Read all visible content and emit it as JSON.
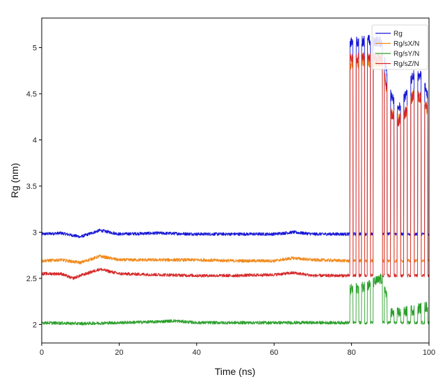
{
  "chart_data": {
    "type": "line",
    "xlabel": "Time (ns)",
    "ylabel": "Rg (nm)",
    "xlim": [
      0,
      100
    ],
    "ylim": [
      1.8,
      5.32
    ],
    "xticks": [
      0,
      20,
      40,
      60,
      80,
      100
    ],
    "yticks": [
      2,
      2.5,
      3,
      3.5,
      4,
      4.5,
      5
    ],
    "xtick_labels": [
      "0",
      "20",
      "40",
      "60",
      "80",
      "100"
    ],
    "ytick_labels": [
      "2",
      "2.5",
      "3",
      "3.5",
      "4",
      "4.5",
      "5"
    ],
    "grid": false,
    "legend_position": "top-right",
    "series": [
      {
        "name": "Rg",
        "color": "#1515d6",
        "base_points": [
          [
            0,
            2.98
          ],
          [
            5,
            2.99
          ],
          [
            10,
            2.95
          ],
          [
            15,
            3.02
          ],
          [
            20,
            2.98
          ],
          [
            30,
            2.99
          ],
          [
            40,
            2.98
          ],
          [
            50,
            2.98
          ],
          [
            60,
            2.98
          ],
          [
            65,
            3.0
          ],
          [
            70,
            2.98
          ],
          [
            79,
            2.98
          ]
        ],
        "segment_points": [
          [
            80,
            5.05
          ],
          [
            84,
            5.08
          ],
          [
            88,
            5.06
          ],
          [
            90,
            4.5
          ],
          [
            92,
            4.32
          ],
          [
            94,
            4.5
          ],
          [
            96,
            4.7
          ],
          [
            98,
            4.7
          ],
          [
            100,
            4.45
          ]
        ],
        "switch_times": [
          79.6,
          80.4,
          81.2,
          81.9,
          82.6,
          83.4,
          84.1,
          84.9,
          85.6,
          88.0,
          88.5,
          89.2,
          90.1,
          91.0,
          91.8,
          92.7,
          93.5,
          94.4,
          95.3,
          96.2,
          97.1,
          98.0,
          98.9,
          99.7
        ]
      },
      {
        "name": "Rg/sX/N",
        "color": "#f08a1c",
        "base_points": [
          [
            0,
            2.69
          ],
          [
            5,
            2.7
          ],
          [
            10,
            2.67
          ],
          [
            15,
            2.74
          ],
          [
            20,
            2.7
          ],
          [
            30,
            2.7
          ],
          [
            40,
            2.7
          ],
          [
            50,
            2.69
          ],
          [
            60,
            2.69
          ],
          [
            65,
            2.72
          ],
          [
            70,
            2.7
          ],
          [
            79,
            2.69
          ]
        ],
        "segment_points": [
          [
            80,
            4.82
          ],
          [
            84,
            4.85
          ],
          [
            88,
            4.83
          ],
          [
            90,
            4.3
          ],
          [
            92,
            4.22
          ],
          [
            94,
            4.3
          ],
          [
            96,
            4.5
          ],
          [
            98,
            4.45
          ],
          [
            100,
            4.3
          ]
        ],
        "switch_times": [
          79.6,
          80.4,
          81.2,
          81.9,
          82.6,
          83.4,
          84.1,
          84.9,
          85.6,
          88.0,
          88.5,
          89.2,
          90.1,
          91.0,
          91.8,
          92.7,
          93.5,
          94.4,
          95.3,
          96.2,
          97.1,
          98.0,
          98.9,
          99.7
        ]
      },
      {
        "name": "Rg/sY/N",
        "color": "#2ca02c",
        "base_points": [
          [
            0,
            2.02
          ],
          [
            10,
            2.01
          ],
          [
            20,
            2.02
          ],
          [
            30,
            2.03
          ],
          [
            34,
            2.04
          ],
          [
            40,
            2.02
          ],
          [
            50,
            2.02
          ],
          [
            60,
            2.02
          ],
          [
            70,
            2.02
          ],
          [
            79,
            2.02
          ]
        ],
        "segment_points": [
          [
            80,
            2.38
          ],
          [
            84,
            2.42
          ],
          [
            88,
            2.5
          ],
          [
            90,
            2.12
          ],
          [
            94,
            2.14
          ],
          [
            98,
            2.18
          ],
          [
            100,
            2.2
          ]
        ],
        "switch_times": [
          79.6,
          80.4,
          81.2,
          81.9,
          82.6,
          83.4,
          84.1,
          84.9,
          85.6,
          88.0,
          88.5,
          89.2,
          90.1,
          91.0,
          91.8,
          92.7,
          93.5,
          94.4,
          95.3,
          96.2,
          97.1,
          98.0,
          98.9,
          99.7
        ]
      },
      {
        "name": "Rg/sZ/N",
        "color": "#d62728",
        "base_points": [
          [
            0,
            2.55
          ],
          [
            5,
            2.55
          ],
          [
            8,
            2.5
          ],
          [
            10,
            2.53
          ],
          [
            15,
            2.6
          ],
          [
            20,
            2.55
          ],
          [
            30,
            2.54
          ],
          [
            40,
            2.53
          ],
          [
            50,
            2.53
          ],
          [
            60,
            2.54
          ],
          [
            65,
            2.56
          ],
          [
            70,
            2.53
          ],
          [
            79,
            2.53
          ]
        ],
        "segment_points": [
          [
            80,
            4.88
          ],
          [
            84,
            4.9
          ],
          [
            88,
            4.88
          ],
          [
            90,
            4.3
          ],
          [
            92,
            4.2
          ],
          [
            94,
            4.3
          ],
          [
            96,
            4.5
          ],
          [
            98,
            4.45
          ],
          [
            100,
            4.3
          ]
        ],
        "switch_times": [
          79.6,
          80.4,
          81.2,
          81.9,
          82.6,
          83.4,
          84.1,
          84.9,
          85.6,
          88.0,
          88.5,
          89.2,
          90.1,
          91.0,
          91.8,
          92.7,
          93.5,
          94.4,
          95.3,
          96.2,
          97.1,
          98.0,
          98.9,
          99.7
        ]
      }
    ]
  }
}
